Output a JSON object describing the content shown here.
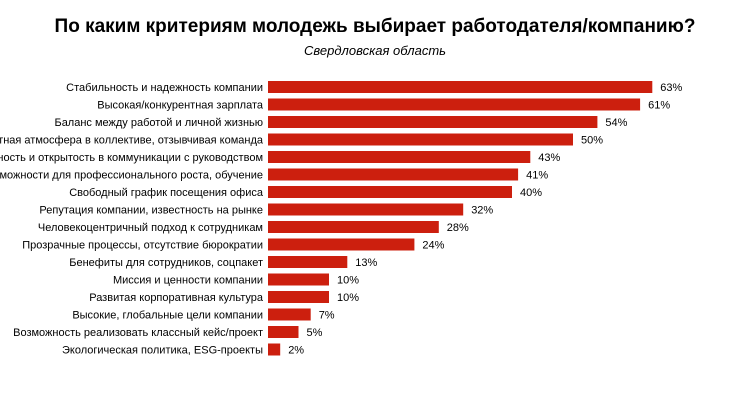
{
  "chart_data": {
    "type": "bar",
    "orientation": "horizontal",
    "title": "По каким критериям молодежь выбирает работодателя/компанию?",
    "subtitle": "Свердловская область",
    "bar_color": "#cc1f0e",
    "grid": false,
    "xlim": [
      0,
      100
    ],
    "categories": [
      "Стабильность и надежность компании",
      "Высокая/конкурентная зарплата",
      "Баланс между работой и личной жизнью",
      "Комфортная атмосфера в коллективе, отзывчивая команда",
      "Честность и открытость в коммуникации с руководством",
      "Возможности для профессионального роста, обучение",
      "Свободный график посещения офиса",
      "Репутация компании, известность на рынке",
      "Человекоцентричный подход к сотрудникам",
      "Прозрачные процессы, отсутствие бюрократии",
      "Бенефиты для сотрудников, соцпакет",
      "Миссия и ценности компании",
      "Развитая корпоративная культура",
      "Высокие, глобальные цели компании",
      "Возможность реализовать классный кейс/проект",
      "Экологическая политика, ESG-проекты"
    ],
    "values": [
      63,
      61,
      54,
      50,
      43,
      41,
      40,
      32,
      28,
      24,
      13,
      10,
      10,
      7,
      5,
      2
    ],
    "value_labels": [
      "63%",
      "61%",
      "54%",
      "50%",
      "43%",
      "41%",
      "40%",
      "32%",
      "28%",
      "24%",
      "13%",
      "10%",
      "10%",
      "7%",
      "5%",
      "2%"
    ]
  }
}
